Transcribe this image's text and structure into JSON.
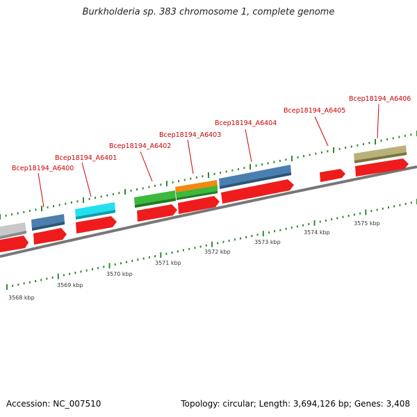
{
  "title": "Burkholderia sp. 383 chromosome 1, complete genome",
  "footer": {
    "accession": "Accession: NC_007510",
    "topology": "Topology: circular; Length: 3,694,126 bp; Genes: 3,408"
  },
  "features": [
    {
      "label": "Bcep18194_A6400",
      "color": "#4a7fb0"
    },
    {
      "label": "Bcep18194_A6401",
      "color": "#22e0f0"
    },
    {
      "label": "Bcep18194_A6402",
      "color": "#3cb83c"
    },
    {
      "label": "Bcep18194_A6403",
      "color": "#f08a10"
    },
    {
      "label": "Bcep18194_A6404",
      "color": "#4a7fb0"
    },
    {
      "label": "Bcep18194_A6405",
      "color": "#ee1c1c"
    },
    {
      "label": "Bcep18194_A6406",
      "color": "#b8b27a"
    }
  ],
  "kbp_labels": [
    "3568 kbp",
    "3569 kbp",
    "3570 kbp",
    "3571 kbp",
    "3572 kbp",
    "3573 kbp",
    "3574 kbp",
    "3575 kbp"
  ]
}
